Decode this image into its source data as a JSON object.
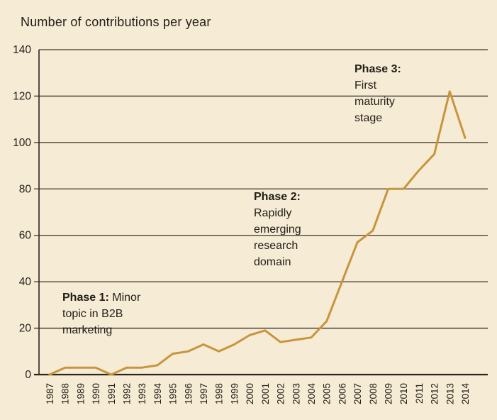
{
  "chart_data": {
    "type": "line",
    "title": "Number of contributions per year",
    "x": [
      1987,
      1988,
      1989,
      1990,
      1991,
      1992,
      1993,
      1994,
      1995,
      1996,
      1997,
      1998,
      1999,
      2000,
      2001,
      2002,
      2003,
      2004,
      2005,
      2006,
      2007,
      2008,
      2009,
      2010,
      2011,
      2012,
      2013,
      2014
    ],
    "values": [
      0,
      3,
      3,
      3,
      0,
      3,
      3,
      4,
      9,
      10,
      13,
      10,
      13,
      17,
      19,
      14,
      15,
      16,
      23,
      40,
      57,
      62,
      80,
      80,
      88,
      95,
      122,
      102
    ],
    "xlabel": "",
    "ylabel": "",
    "ylim": [
      0,
      140
    ],
    "ytick_step": 20,
    "yticks": [
      0,
      20,
      40,
      60,
      80,
      100,
      120,
      140
    ],
    "grid": true,
    "legend": "none",
    "colors": {
      "background": "#f6ebd4",
      "line": "#c8953c",
      "grid": "#3a342a",
      "axis": "#2b2720",
      "text": "#211e18"
    }
  },
  "annotations": [
    {
      "title": "Phase 1:",
      "title_suffix": " Minor",
      "lines": [
        "topic in B2B",
        "marketing"
      ]
    },
    {
      "title": "Phase 2:",
      "title_suffix": "",
      "lines": [
        "Rapidly",
        "emerging",
        "research",
        "domain"
      ]
    },
    {
      "title": "Phase 3:",
      "title_suffix": "",
      "lines": [
        "First",
        "maturity",
        "stage"
      ]
    }
  ]
}
